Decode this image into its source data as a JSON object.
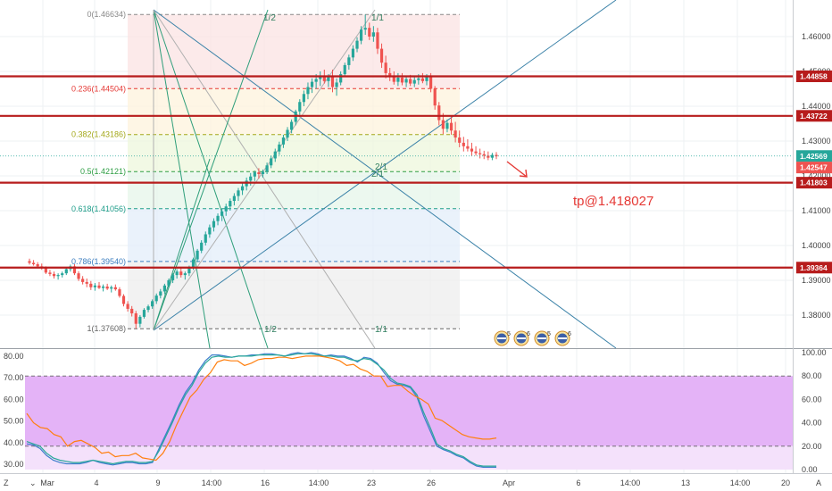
{
  "chart_data": [
    {
      "type": "candlestick",
      "ylim": [
        1.3705,
        1.4705
      ],
      "y_ticks": [
        "1.38000",
        "1.39000",
        "1.40000",
        "1.41000",
        "1.42000",
        "1.43000",
        "1.44000",
        "1.45000",
        "1.46000"
      ],
      "x_ticks": [
        "Mar",
        "4",
        "9",
        "14:00",
        "16",
        "14:00",
        "23",
        "26",
        "Apr",
        "6",
        "14:00",
        "13",
        "14:00",
        "20"
      ],
      "fib_levels": [
        {
          "label": "0(1.46634)",
          "value": 1.46634,
          "color": "#888888"
        },
        {
          "label": "0.236(1.44504)",
          "value": 1.44504,
          "color": "#e53935"
        },
        {
          "label": "0.382(1.43186)",
          "value": 1.43186,
          "color": "#a4a81a"
        },
        {
          "label": "0.5(1.42121)",
          "value": 1.42121,
          "color": "#2e9e44"
        },
        {
          "label": "0.618(1.41056)",
          "value": 1.41056,
          "color": "#1f9e8a"
        },
        {
          "label": "0.786(1.39540)",
          "value": 1.3954,
          "color": "#3b7dbf"
        },
        {
          "label": "1(1.37608)",
          "value": 1.37608,
          "color": "#666666"
        }
      ],
      "horizontal_lines": [
        {
          "label": "1.44858",
          "value": 1.44858
        },
        {
          "label": "1.43722",
          "value": 1.43722
        },
        {
          "label": "1.41803",
          "value": 1.41803
        },
        {
          "label": "1.39364",
          "value": 1.39364
        }
      ],
      "price_labels": [
        {
          "label": "1.42569",
          "value": 1.42569,
          "color": "#26a69a"
        },
        {
          "label": "1.42547",
          "value": 1.42547,
          "color": "#ef5350"
        }
      ],
      "gann_labels": [
        "1/2",
        "1/1",
        "2/1",
        "2/1",
        "1/2",
        "1/1"
      ],
      "annotation": "tp@1.418027",
      "series": [
        {
          "values": [
            [
              1.3955,
              1.3962,
              1.3945,
              1.395
            ],
            [
              1.395,
              1.3958,
              1.3942,
              1.3946
            ],
            [
              1.3946,
              1.3952,
              1.3935,
              1.394
            ],
            [
              1.394,
              1.3948,
              1.393,
              1.3935
            ],
            [
              1.3935,
              1.394,
              1.3918,
              1.3922
            ],
            [
              1.3922,
              1.393,
              1.3912,
              1.3918
            ],
            [
              1.3918,
              1.3925,
              1.3905,
              1.3912
            ],
            [
              1.3912,
              1.392,
              1.3902,
              1.3915
            ],
            [
              1.3915,
              1.3925,
              1.3908,
              1.392
            ],
            [
              1.392,
              1.3938,
              1.3915,
              1.3932
            ],
            [
              1.3932,
              1.3945,
              1.3925,
              1.394
            ],
            [
              1.394,
              1.3946,
              1.3915,
              1.392
            ],
            [
              1.392,
              1.3926,
              1.3898,
              1.3904
            ],
            [
              1.3904,
              1.3912,
              1.3888,
              1.3895
            ],
            [
              1.3895,
              1.3905,
              1.388,
              1.389
            ],
            [
              1.389,
              1.3898,
              1.3872,
              1.388
            ],
            [
              1.388,
              1.3892,
              1.387,
              1.3885
            ],
            [
              1.3885,
              1.3895,
              1.3875,
              1.3878
            ],
            [
              1.3878,
              1.3888,
              1.3868,
              1.3882
            ],
            [
              1.3882,
              1.389,
              1.3872,
              1.3876
            ],
            [
              1.3876,
              1.3885,
              1.3865,
              1.388
            ],
            [
              1.388,
              1.3888,
              1.387,
              1.3874
            ],
            [
              1.3874,
              1.388,
              1.385,
              1.3855
            ],
            [
              1.3855,
              1.386,
              1.3825,
              1.3832
            ],
            [
              1.3832,
              1.384,
              1.381,
              1.3818
            ],
            [
              1.3818,
              1.3826,
              1.3796,
              1.3805
            ],
            [
              1.3805,
              1.3812,
              1.3761,
              1.3775
            ],
            [
              1.3775,
              1.38,
              1.3765,
              1.3795
            ],
            [
              1.3795,
              1.382,
              1.379,
              1.3815
            ],
            [
              1.3815,
              1.383,
              1.3808,
              1.3825
            ],
            [
              1.3825,
              1.3845,
              1.3818,
              1.384
            ],
            [
              1.384,
              1.3862,
              1.3832,
              1.3856
            ],
            [
              1.3856,
              1.3875,
              1.3848,
              1.3868
            ],
            [
              1.3868,
              1.389,
              1.386,
              1.3885
            ],
            [
              1.3885,
              1.3905,
              1.3878,
              1.39
            ],
            [
              1.39,
              1.392,
              1.3892,
              1.3915
            ],
            [
              1.3915,
              1.3932,
              1.3905,
              1.3925
            ],
            [
              1.3925,
              1.3938,
              1.3908,
              1.3915
            ],
            [
              1.3915,
              1.3925,
              1.3902,
              1.392
            ],
            [
              1.392,
              1.3942,
              1.3912,
              1.3938
            ],
            [
              1.3938,
              1.3965,
              1.393,
              1.396
            ],
            [
              1.396,
              1.399,
              1.3952,
              1.3985
            ],
            [
              1.3985,
              1.4015,
              1.3978,
              1.4008
            ],
            [
              1.4008,
              1.404,
              1.4,
              1.4032
            ],
            [
              1.4032,
              1.406,
              1.4022,
              1.4052
            ],
            [
              1.4052,
              1.4078,
              1.404,
              1.407
            ],
            [
              1.407,
              1.4092,
              1.4058,
              1.4085
            ],
            [
              1.4085,
              1.4105,
              1.407,
              1.4098
            ],
            [
              1.4098,
              1.412,
              1.4085,
              1.4112
            ],
            [
              1.4112,
              1.4135,
              1.41,
              1.4128
            ],
            [
              1.4128,
              1.415,
              1.4115,
              1.4142
            ],
            [
              1.4142,
              1.4165,
              1.4128,
              1.4158
            ],
            [
              1.4158,
              1.418,
              1.4145,
              1.417
            ],
            [
              1.417,
              1.4195,
              1.4158,
              1.4186
            ],
            [
              1.4186,
              1.4208,
              1.4172,
              1.4198
            ],
            [
              1.4198,
              1.4215,
              1.4185,
              1.421
            ],
            [
              1.421,
              1.4222,
              1.4192,
              1.4205
            ],
            [
              1.4205,
              1.4218,
              1.4195,
              1.4212
            ],
            [
              1.4212,
              1.4238,
              1.4205,
              1.423
            ],
            [
              1.423,
              1.4258,
              1.4222,
              1.425
            ],
            [
              1.425,
              1.4278,
              1.424,
              1.427
            ],
            [
              1.427,
              1.4298,
              1.426,
              1.429
            ],
            [
              1.429,
              1.4318,
              1.428,
              1.431
            ],
            [
              1.431,
              1.434,
              1.43,
              1.4332
            ],
            [
              1.4332,
              1.4362,
              1.4322,
              1.4355
            ],
            [
              1.4355,
              1.439,
              1.4345,
              1.4385
            ],
            [
              1.4385,
              1.442,
              1.4375,
              1.4412
            ],
            [
              1.4412,
              1.4445,
              1.44,
              1.4435
            ],
            [
              1.4435,
              1.4468,
              1.442,
              1.4455
            ],
            [
              1.4455,
              1.448,
              1.4438,
              1.447
            ],
            [
              1.447,
              1.4492,
              1.445,
              1.4478
            ],
            [
              1.4478,
              1.45,
              1.4458,
              1.4488
            ],
            [
              1.4488,
              1.4505,
              1.4465,
              1.4472
            ],
            [
              1.4472,
              1.4492,
              1.4455,
              1.4485
            ],
            [
              1.4485,
              1.4505,
              1.444,
              1.4455
            ],
            [
              1.4455,
              1.448,
              1.443,
              1.4468
            ],
            [
              1.4468,
              1.45,
              1.446,
              1.4492
            ],
            [
              1.4492,
              1.4525,
              1.4485,
              1.4518
            ],
            [
              1.4518,
              1.4548,
              1.4505,
              1.454
            ],
            [
              1.454,
              1.4575,
              1.453,
              1.4565
            ],
            [
              1.4565,
              1.4598,
              1.4555,
              1.4588
            ],
            [
              1.4588,
              1.463,
              1.4578,
              1.462
            ],
            [
              1.462,
              1.4663,
              1.4605,
              1.4625
            ],
            [
              1.4625,
              1.464,
              1.459,
              1.46
            ],
            [
              1.46,
              1.463,
              1.4585,
              1.4612
            ],
            [
              1.4612,
              1.4625,
              1.455,
              1.4565
            ],
            [
              1.4565,
              1.458,
              1.451,
              1.4525
            ],
            [
              1.4525,
              1.4545,
              1.448,
              1.4495
            ],
            [
              1.4495,
              1.451,
              1.4472,
              1.4488
            ],
            [
              1.4488,
              1.45,
              1.4462,
              1.447
            ],
            [
              1.447,
              1.4495,
              1.4458,
              1.4482
            ],
            [
              1.4482,
              1.4495,
              1.446,
              1.4468
            ],
            [
              1.4468,
              1.4488,
              1.4455,
              1.4478
            ],
            [
              1.4478,
              1.449,
              1.4458,
              1.4465
            ],
            [
              1.4465,
              1.4485,
              1.4455,
              1.4475
            ],
            [
              1.4475,
              1.4492,
              1.4462,
              1.448
            ],
            [
              1.448,
              1.4495,
              1.4466,
              1.4472
            ],
            [
              1.4472,
              1.4492,
              1.446,
              1.4485
            ],
            [
              1.4485,
              1.4495,
              1.444,
              1.445
            ],
            [
              1.445,
              1.4458,
              1.439,
              1.4402
            ],
            [
              1.4402,
              1.4412,
              1.4345,
              1.436
            ],
            [
              1.436,
              1.438,
              1.432,
              1.4335
            ],
            [
              1.4335,
              1.4362,
              1.4325,
              1.4352
            ],
            [
              1.4352,
              1.4372,
              1.4318,
              1.433
            ],
            [
              1.433,
              1.4355,
              1.4296,
              1.431
            ],
            [
              1.431,
              1.433,
              1.4282,
              1.4295
            ],
            [
              1.4295,
              1.4312,
              1.427,
              1.4285
            ],
            [
              1.4285,
              1.4305,
              1.427,
              1.4278
            ],
            [
              1.4278,
              1.4295,
              1.4258,
              1.427
            ],
            [
              1.427,
              1.4285,
              1.4258,
              1.4265
            ],
            [
              1.4265,
              1.4278,
              1.425,
              1.4262
            ],
            [
              1.4262,
              1.4272,
              1.4248,
              1.4258
            ],
            [
              1.4258,
              1.427,
              1.4245,
              1.4252
            ],
            [
              1.4252,
              1.4266,
              1.4245,
              1.426
            ],
            [
              1.426,
              1.4268,
              1.4248,
              1.4256
            ]
          ]
        }
      ]
    },
    {
      "type": "line",
      "ylim": [
        0,
        100
      ],
      "y_ticks": [
        "0.00",
        "20.00",
        "40.00",
        "60.00",
        "80.00",
        "100.00"
      ],
      "left_ticks": [
        "30.00",
        "40.00",
        "50.00",
        "60.00",
        "70.00",
        "80.00"
      ],
      "bands": [
        20,
        80
      ],
      "series": [
        {
          "color": "#3d7ecb",
          "values": [
            22,
            21,
            18,
            12,
            8,
            6,
            5,
            5,
            5,
            6,
            8,
            6,
            5,
            4,
            5,
            6,
            6,
            5,
            5,
            6,
            18,
            30,
            42,
            55,
            66,
            74,
            85,
            93,
            98,
            98,
            97,
            96,
            97,
            97,
            98,
            98,
            99,
            99,
            98,
            97,
            99,
            100,
            99,
            100,
            99,
            97,
            98,
            97,
            97,
            95,
            92,
            96,
            95,
            91,
            83,
            76,
            73,
            72,
            70,
            62,
            46,
            33,
            20,
            17,
            15,
            12,
            10,
            6,
            3,
            2,
            2,
            2
          ]
        },
        {
          "color": "#2aa89a",
          "values": [
            24,
            22,
            20,
            14,
            10,
            8,
            7,
            6,
            6,
            7,
            8,
            7,
            6,
            5,
            6,
            7,
            7,
            6,
            6,
            7,
            16,
            28,
            40,
            53,
            64,
            72,
            83,
            91,
            96,
            97,
            96,
            96,
            97,
            97,
            97,
            98,
            98,
            98,
            98,
            97,
            98,
            99,
            99,
            99,
            98,
            97,
            97,
            96,
            96,
            94,
            93,
            95,
            94,
            90,
            85,
            78,
            74,
            73,
            71,
            64,
            49,
            36,
            22,
            18,
            16,
            13,
            11,
            7,
            4,
            3,
            3,
            3
          ]
        },
        {
          "color": "#ff7f0e",
          "values": [
            48,
            40,
            36,
            35,
            30,
            28,
            20,
            24,
            25,
            22,
            19,
            14,
            15,
            11,
            12,
            12,
            14,
            10,
            9,
            8,
            14,
            24,
            38,
            50,
            62,
            68,
            77,
            83,
            92,
            94,
            93,
            93,
            89,
            91,
            94,
            95,
            95,
            96,
            96,
            95,
            96,
            97,
            97,
            97,
            96,
            95,
            93,
            89,
            90,
            86,
            84,
            80,
            80,
            71,
            72,
            72,
            67,
            63,
            60,
            56,
            44,
            42,
            38,
            34,
            30,
            28,
            27,
            26,
            26,
            27
          ]
        }
      ]
    }
  ]
}
